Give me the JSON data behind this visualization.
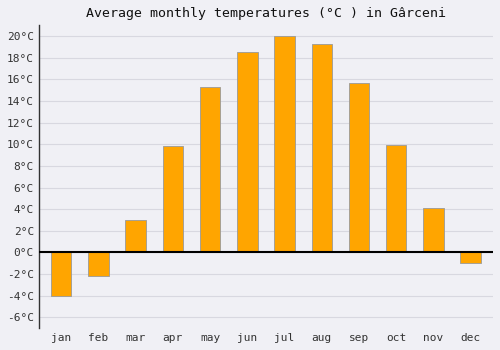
{
  "title": "Average monthly temperatures (°C ) in Gârceni",
  "months": [
    "jan",
    "feb",
    "mar",
    "apr",
    "may",
    "jun",
    "jul",
    "aug",
    "sep",
    "oct",
    "nov",
    "dec"
  ],
  "values": [
    -4.0,
    -2.2,
    3.0,
    9.8,
    15.3,
    18.5,
    20.0,
    19.3,
    15.7,
    9.9,
    4.1,
    -1.0
  ],
  "bar_color": "#FFA500",
  "bar_edge_color": "#999999",
  "ylim": [
    -7,
    21
  ],
  "yticks": [
    -6,
    -4,
    -2,
    0,
    2,
    4,
    6,
    8,
    10,
    12,
    14,
    16,
    18,
    20
  ],
  "background_color": "#f0f0f5",
  "plot_bg_color": "#f0f0f5",
  "grid_color": "#d8d8e0",
  "title_fontsize": 9.5,
  "tick_fontsize": 8
}
